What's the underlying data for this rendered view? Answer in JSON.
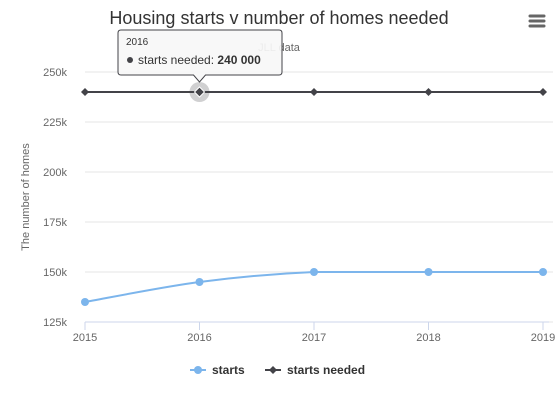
{
  "chart_data": {
    "type": "line",
    "title": "Housing starts v number of homes needed",
    "subtitle": "JLL data",
    "xlabel": "",
    "ylabel": "The number of homes",
    "categories": [
      "2015",
      "2016",
      "2017",
      "2018",
      "2019"
    ],
    "ylim": [
      125000,
      250000
    ],
    "yticks": [
      125000,
      150000,
      175000,
      200000,
      225000,
      250000
    ],
    "ytick_labels": [
      "125k",
      "150k",
      "175k",
      "200k",
      "225k",
      "250k"
    ],
    "grid": true,
    "legend_position": "bottom",
    "series": [
      {
        "name": "starts",
        "values": [
          135000,
          145000,
          150000,
          150000,
          150000
        ],
        "color": "#7cb5ec",
        "marker": "circle",
        "smooth": true
      },
      {
        "name": "starts needed",
        "values": [
          240000,
          240000,
          240000,
          240000,
          240000
        ],
        "color": "#434348",
        "marker": "diamond",
        "smooth": false
      }
    ],
    "tooltip": {
      "header": "2016",
      "series_label": "starts needed:",
      "value_text": "240 000",
      "category_index": 1,
      "series_index": 1
    }
  },
  "menu_icon": "hamburger-menu-icon"
}
